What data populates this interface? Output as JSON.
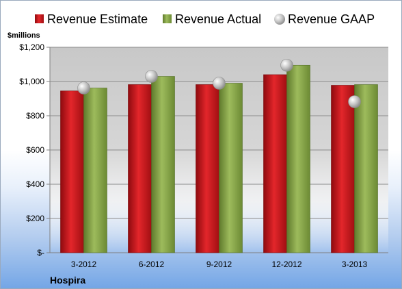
{
  "company": "Hospira",
  "chart_data": {
    "type": "bar",
    "unit_label": "$millions",
    "categories": [
      "3-2012",
      "6-2012",
      "9-2012",
      "12-2012",
      "3-2013"
    ],
    "series": [
      {
        "name": "Revenue Estimate",
        "style": "bar",
        "color": "#d0141a",
        "values": [
          945,
          982,
          982,
          1040,
          978
        ]
      },
      {
        "name": "Revenue Actual",
        "style": "bar",
        "color": "#8cac4e",
        "values": [
          962,
          1030,
          990,
          1095,
          982
        ]
      },
      {
        "name": "Revenue GAAP",
        "style": "marker",
        "color": "#b9b9b9",
        "values": [
          962,
          1030,
          990,
          1095,
          882
        ]
      }
    ],
    "y_ticks": [
      {
        "value": 0,
        "label": "$-"
      },
      {
        "value": 200,
        "label": "$200"
      },
      {
        "value": 400,
        "label": "$400"
      },
      {
        "value": 600,
        "label": "$600"
      },
      {
        "value": 800,
        "label": "$800"
      },
      {
        "value": 1000,
        "label": "$1,000"
      },
      {
        "value": 1200,
        "label": "$1,200"
      }
    ],
    "ylim": [
      0,
      1200
    ],
    "grid": true,
    "legend_position": "top"
  }
}
